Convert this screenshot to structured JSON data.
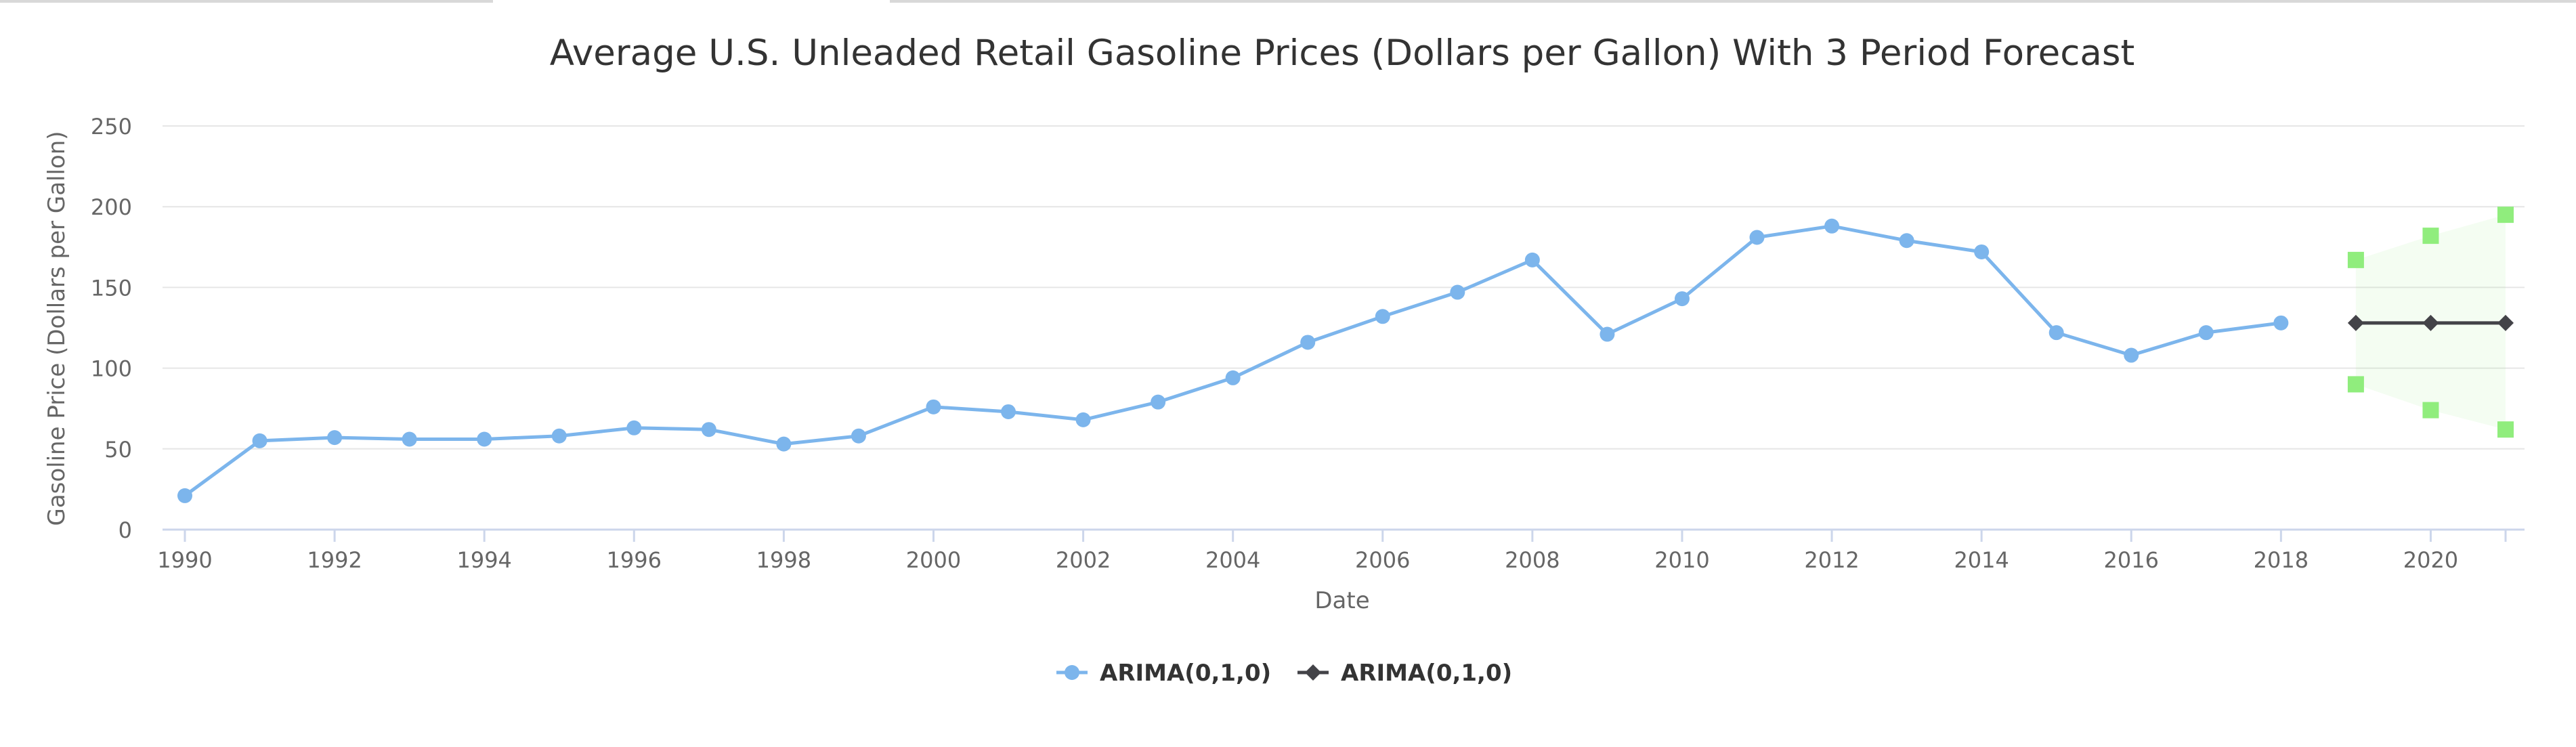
{
  "chart_data": {
    "type": "line",
    "title": "Average U.S. Unleaded Retail Gasoline Prices (Dollars per Gallon) With 3 Period Forecast",
    "xlabel": "Date",
    "ylabel": "Gasoline Price (Dollars per Gallon)",
    "xlim": [
      1990,
      2021
    ],
    "ylim": [
      0,
      250
    ],
    "x_ticks": [
      "1990",
      "1992",
      "1994",
      "1996",
      "1998",
      "2000",
      "2002",
      "2004",
      "2006",
      "2008",
      "2010",
      "2012",
      "2014",
      "2016",
      "2018",
      "2020"
    ],
    "y_ticks": [
      "0",
      "50",
      "100",
      "150",
      "200",
      "250"
    ],
    "grid": "horizontal",
    "legend_position": "bottom-center",
    "series": [
      {
        "name": "ARIMA(0,1,0)",
        "color": "#7cb5ec",
        "marker": "circle",
        "x": [
          1990,
          1991,
          1992,
          1993,
          1994,
          1995,
          1996,
          1997,
          1998,
          1999,
          2000,
          2001,
          2002,
          2003,
          2004,
          2005,
          2006,
          2007,
          2008,
          2009,
          2010,
          2011,
          2012,
          2013,
          2014,
          2015,
          2016,
          2017,
          2018
        ],
        "values": [
          21,
          55,
          57,
          56,
          56,
          58,
          63,
          62,
          53,
          58,
          76,
          73,
          68,
          79,
          94,
          116,
          132,
          147,
          167,
          121,
          143,
          181,
          188,
          179,
          172,
          122,
          108,
          122,
          128
        ]
      },
      {
        "name": "ARIMA(0,1,0)",
        "color": "#434348",
        "marker": "diamond",
        "x": [
          2019,
          2020,
          2021
        ],
        "values": [
          128,
          128,
          128
        ]
      }
    ],
    "forecast_interval": {
      "color": "#90ed7d",
      "x": [
        2019,
        2020,
        2021
      ],
      "upper": [
        167,
        182,
        195
      ],
      "lower": [
        90,
        74,
        62
      ]
    }
  }
}
